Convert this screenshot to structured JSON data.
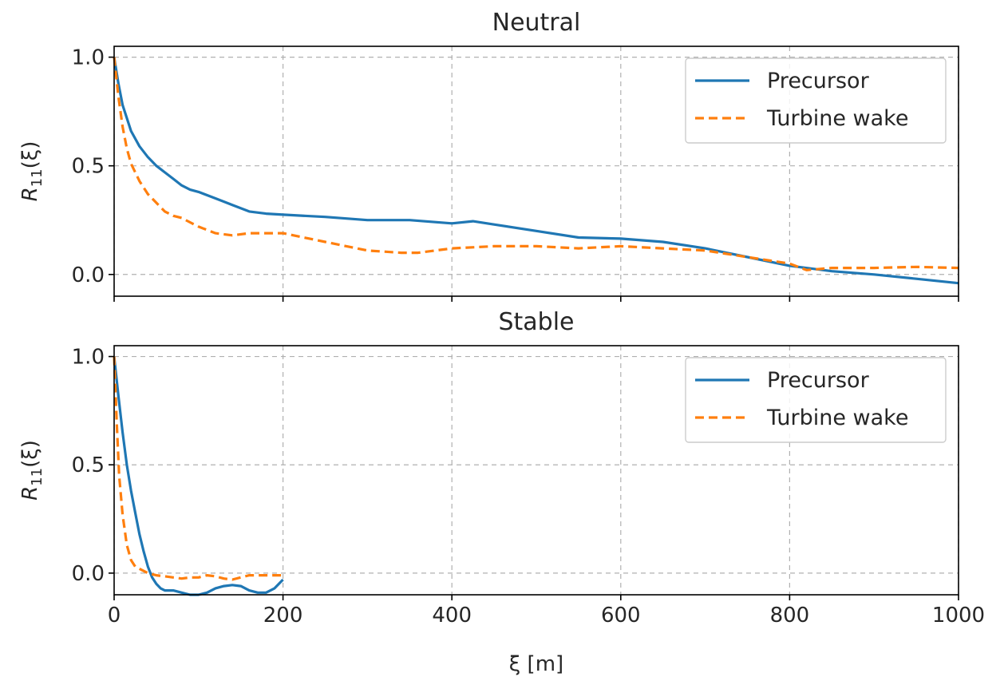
{
  "chart_data": [
    {
      "type": "line",
      "title": "Neutral",
      "xlabel": "",
      "ylabel_main": "R",
      "ylabel_sub": "11",
      "ylabel_arg": "(ξ)",
      "xlim": [
        0,
        1000
      ],
      "ylim": [
        -0.1,
        1.05
      ],
      "xticks": [
        0,
        200,
        400,
        600,
        800,
        1000
      ],
      "xtick_labels_visible": false,
      "yticks": [
        0.0,
        0.5,
        1.0
      ],
      "ytick_labels": [
        "0.0",
        "0.5",
        "1.0"
      ],
      "grid": true,
      "legend_position": "top-right",
      "series": [
        {
          "name": "Precursor",
          "color": "#1f77b4",
          "style": "solid",
          "x": [
            0,
            5,
            10,
            20,
            30,
            40,
            50,
            60,
            70,
            80,
            90,
            100,
            120,
            140,
            160,
            180,
            200,
            250,
            300,
            350,
            400,
            425,
            450,
            500,
            550,
            600,
            650,
            700,
            750,
            800,
            850,
            900,
            950,
            1000
          ],
          "y": [
            1.0,
            0.88,
            0.78,
            0.66,
            0.59,
            0.54,
            0.5,
            0.47,
            0.44,
            0.41,
            0.39,
            0.38,
            0.35,
            0.32,
            0.29,
            0.28,
            0.275,
            0.265,
            0.25,
            0.25,
            0.235,
            0.245,
            0.23,
            0.2,
            0.17,
            0.165,
            0.15,
            0.12,
            0.08,
            0.04,
            0.015,
            0.0,
            -0.02,
            -0.04
          ]
        },
        {
          "name": "Turbine wake",
          "color": "#ff7f0e",
          "style": "dashed",
          "x": [
            0,
            5,
            10,
            15,
            20,
            30,
            40,
            50,
            60,
            70,
            80,
            90,
            100,
            120,
            140,
            160,
            180,
            200,
            250,
            300,
            340,
            360,
            400,
            450,
            500,
            550,
            600,
            650,
            700,
            750,
            800,
            820,
            850,
            900,
            950,
            1000
          ],
          "y": [
            1.0,
            0.82,
            0.68,
            0.58,
            0.51,
            0.43,
            0.37,
            0.33,
            0.29,
            0.27,
            0.26,
            0.24,
            0.22,
            0.19,
            0.18,
            0.19,
            0.19,
            0.19,
            0.15,
            0.11,
            0.1,
            0.1,
            0.12,
            0.13,
            0.13,
            0.12,
            0.13,
            0.12,
            0.11,
            0.08,
            0.05,
            0.02,
            0.03,
            0.03,
            0.035,
            0.03
          ]
        }
      ]
    },
    {
      "type": "line",
      "title": "Stable",
      "xlabel": "ξ [m]",
      "ylabel_main": "R",
      "ylabel_sub": "11",
      "ylabel_arg": "(ξ)",
      "xlim": [
        0,
        1000
      ],
      "ylim": [
        -0.1,
        1.05
      ],
      "xticks": [
        0,
        200,
        400,
        600,
        800,
        1000
      ],
      "xtick_labels": [
        "0",
        "200",
        "400",
        "600",
        "800",
        "1000"
      ],
      "xtick_labels_visible": true,
      "yticks": [
        0.0,
        0.5,
        1.0
      ],
      "ytick_labels": [
        "0.0",
        "0.5",
        "1.0"
      ],
      "grid": true,
      "legend_position": "top-right",
      "series": [
        {
          "name": "Precursor",
          "color": "#1f77b4",
          "style": "solid",
          "x": [
            0,
            5,
            10,
            15,
            20,
            25,
            30,
            35,
            40,
            45,
            50,
            55,
            60,
            70,
            80,
            90,
            100,
            110,
            120,
            130,
            140,
            150,
            160,
            170,
            180,
            190,
            200
          ],
          "y": [
            1.0,
            0.82,
            0.65,
            0.5,
            0.38,
            0.28,
            0.18,
            0.1,
            0.03,
            -0.02,
            -0.05,
            -0.07,
            -0.08,
            -0.08,
            -0.09,
            -0.1,
            -0.1,
            -0.09,
            -0.07,
            -0.06,
            -0.055,
            -0.06,
            -0.08,
            -0.09,
            -0.09,
            -0.07,
            -0.03
          ]
        },
        {
          "name": "Turbine wake",
          "color": "#ff7f0e",
          "style": "dashed",
          "x": [
            0,
            3,
            6,
            10,
            15,
            20,
            25,
            30,
            40,
            50,
            60,
            70,
            80,
            90,
            100,
            110,
            120,
            130,
            140,
            150,
            160,
            170,
            180,
            190,
            200
          ],
          "y": [
            1.0,
            0.7,
            0.45,
            0.27,
            0.13,
            0.06,
            0.03,
            0.02,
            0.0,
            -0.01,
            -0.015,
            -0.02,
            -0.025,
            -0.02,
            -0.02,
            -0.01,
            -0.015,
            -0.025,
            -0.03,
            -0.02,
            -0.01,
            -0.01,
            -0.01,
            -0.01,
            -0.01
          ]
        }
      ]
    }
  ]
}
